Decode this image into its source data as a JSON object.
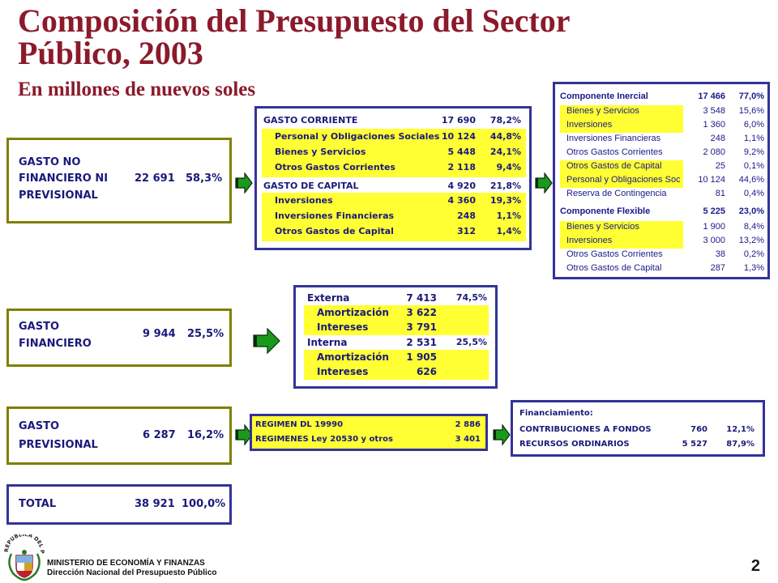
{
  "title_line1": "Composición del Presupuesto del Sector",
  "title_line2": "Público, 2003",
  "subtitle": "En millones de nuevos soles",
  "left_boxes": {
    "no_fin": {
      "label1": "GASTO NO",
      "label2": "FINANCIERO NI",
      "label3": "PREVISIONAL",
      "amount": "22 691",
      "pct": "58,3%"
    },
    "fin": {
      "label1": "GASTO",
      "label2": "FINANCIERO",
      "amount": "9 944",
      "pct": "25,5%"
    },
    "prev": {
      "label1": "GASTO",
      "label2": "PREVISIONAL",
      "amount": "6 287",
      "pct": "16,2%"
    },
    "total": {
      "label": "TOTAL",
      "amount": "38 921",
      "pct": "100,0%"
    }
  },
  "corriente_capital": {
    "corriente": {
      "label": "GASTO CORRIENTE",
      "amount": "17 690",
      "pct": "78,2%"
    },
    "corriente_items": [
      {
        "label": "Personal y Obligaciones Sociales",
        "amount": "10 124",
        "pct": "44,8%"
      },
      {
        "label": "Bienes y Servicios",
        "amount": "5 448",
        "pct": "24,1%"
      },
      {
        "label": "Otros Gastos Corrientes",
        "amount": "2 118",
        "pct": "9,4%"
      }
    ],
    "capital": {
      "label": "GASTO DE CAPITAL",
      "amount": "4 920",
      "pct": "21,8%"
    },
    "capital_items": [
      {
        "label": "Inversiones",
        "amount": "4 360",
        "pct": "19,3%"
      },
      {
        "label": "Inversiones Financieras",
        "amount": "248",
        "pct": "1,1%"
      },
      {
        "label": "Otros Gastos de Capital",
        "amount": "312",
        "pct": "1,4%"
      }
    ]
  },
  "componentes": {
    "inercial": {
      "label": "Componente Inercial",
      "amount": "17 466",
      "pct": "77,0%"
    },
    "inercial_items": [
      {
        "label": "Bienes y Servicios",
        "amount": "3 548",
        "pct": "15,6%",
        "hl": true
      },
      {
        "label": "Inversiones",
        "amount": "1 360",
        "pct": "6,0%",
        "hl": true
      },
      {
        "label": "Inversiones Financieras",
        "amount": "248",
        "pct": "1,1%",
        "hl": false
      },
      {
        "label": "Otros Gastos Corrientes",
        "amount": "2 080",
        "pct": "9,2%",
        "hl": false
      },
      {
        "label": "Otros Gastos de Capital",
        "amount": "25",
        "pct": "0,1%",
        "hl": true
      },
      {
        "label": "Personal y Obligaciones Sociales",
        "amount": "10 124",
        "pct": "44,6%",
        "hl": true
      },
      {
        "label": "Reserva de Contingencia",
        "amount": "81",
        "pct": "0,4%",
        "hl": false
      }
    ],
    "flexible": {
      "label": "Componente Flexible",
      "amount": "5 225",
      "pct": "23,0%"
    },
    "flexible_items": [
      {
        "label": "Bienes y Servicios",
        "amount": "1 900",
        "pct": "8,4%",
        "hl": true
      },
      {
        "label": "Inversiones",
        "amount": "3 000",
        "pct": "13,2%",
        "hl": true
      },
      {
        "label": "Otros Gastos Corrientes",
        "amount": "38",
        "pct": "0,2%",
        "hl": false
      },
      {
        "label": "Otros Gastos de Capital",
        "amount": "287",
        "pct": "1,3%",
        "hl": false
      }
    ]
  },
  "deuda": {
    "externa": {
      "label": "Externa",
      "amount": "7 413",
      "pct": "74,5%"
    },
    "externa_items": [
      {
        "label": "Amortización",
        "amount": "3 622"
      },
      {
        "label": "Intereses",
        "amount": "3 791"
      }
    ],
    "interna": {
      "label": "Interna",
      "amount": "2 531",
      "pct": "25,5%"
    },
    "interna_items": [
      {
        "label": "Amortización",
        "amount": "1 905"
      },
      {
        "label": "Intereses",
        "amount": "626"
      }
    ]
  },
  "regimen": {
    "items": [
      {
        "label": "REGIMEN DL 19990",
        "amount": "2 886"
      },
      {
        "label": "REGIMENES Ley 20530 y otros",
        "amount": "3 401"
      }
    ]
  },
  "financiamiento": {
    "title": "Financiamiento:",
    "items": [
      {
        "label": "CONTRIBUCIONES A FONDOS",
        "amount": "760",
        "pct": "12,1%"
      },
      {
        "label": "RECURSOS ORDINARIOS",
        "amount": "5 527",
        "pct": "87,9%"
      }
    ]
  },
  "footer": {
    "seal_text": "REPUBLICA DEL PERU",
    "ministry": "MINISTERIO DE ECONOMÍA Y FINANZAS",
    "direccion": "Dirección Nacional del Presupuesto Público",
    "page_number": "2"
  },
  "colors": {
    "title": "#8b1a2b",
    "olive": "#808000",
    "navy": "#33339a",
    "highlight": "#ffff33",
    "arrow": "#1a9a1a"
  }
}
